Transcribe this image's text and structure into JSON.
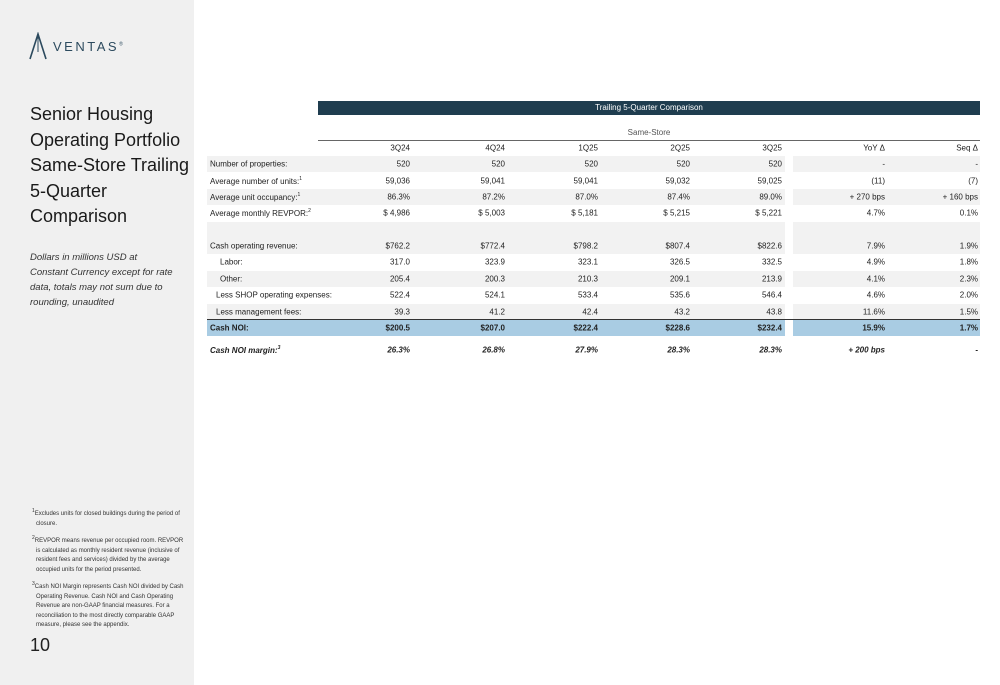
{
  "logo": {
    "text": "VENTAS",
    "mark": "®"
  },
  "title_lines": [
    "Senior Housing",
    "Operating Portfolio",
    "Same-Store Trailing",
    "5-Quarter",
    "Comparison"
  ],
  "subtitle": "Dollars in millions USD at Constant Currency except for rate data, totals may not sum due to rounding, unaudited",
  "footnotes": [
    {
      "number": "1",
      "text": "Excludes units for closed buildings during the period of closure."
    },
    {
      "number": "2",
      "text": "REVPOR means revenue per occupied room. REVPOR is calculated as monthly resident revenue (inclusive of resident fees and services) divided by the average occupied units for the period presented."
    },
    {
      "number": "3",
      "text": "Cash NOI Margin represents Cash NOI divided by Cash Operating Revenue. Cash NOI and Cash Operating Revenue are non-GAAP financial measures. For a reconciliation to the most directly comparable GAAP measure, please see the appendix."
    }
  ],
  "page_number": "10",
  "table": {
    "banner": "Trailing 5-Quarter Comparison",
    "group_header": "Same-Store",
    "columns": [
      "3Q24",
      "4Q24",
      "1Q25",
      "2Q25",
      "3Q25",
      "YoY Δ",
      "Seq Δ"
    ],
    "rows": [
      {
        "label": "Number of properties:",
        "cells": [
          "520",
          "520",
          "520",
          "520",
          "520",
          "-",
          "-"
        ]
      },
      {
        "label": "Average number of units:",
        "note": "1",
        "cells": [
          "59,036",
          "59,041",
          "59,041",
          "59,032",
          "59,025",
          "(11)",
          "(7)"
        ]
      },
      {
        "label": "Average unit occupancy:",
        "note": "1",
        "cells": [
          "86.3%",
          "87.2%",
          "87.0%",
          "87.4%",
          "89.0%",
          "+ 270 bps",
          "+ 160 bps"
        ]
      },
      {
        "label": "Average monthly REVPOR:",
        "note": "2",
        "cells": [
          "$ 4,986",
          "$ 5,003",
          "$ 5,181",
          "$ 5,215",
          "$ 5,221",
          "4.7%",
          "0.1%"
        ]
      },
      {
        "label": "Cash operating revenue:",
        "cells": [
          "$762.2",
          "$772.4",
          "$798.2",
          "$807.4",
          "$822.6",
          "7.9%",
          "1.9%"
        ]
      },
      {
        "label": "Labor:",
        "cells": [
          "317.0",
          "323.9",
          "323.1",
          "326.5",
          "332.5",
          "4.9%",
          "1.8%"
        ]
      },
      {
        "label": "Other:",
        "cells": [
          "205.4",
          "200.3",
          "210.3",
          "209.1",
          "213.9",
          "4.1%",
          "2.3%"
        ]
      },
      {
        "label": "Less SHOP operating expenses:",
        "cells": [
          "522.4",
          "524.1",
          "533.4",
          "535.6",
          "546.4",
          "4.6%",
          "2.0%"
        ]
      },
      {
        "label": "Less management fees:",
        "cells": [
          "39.3",
          "41.2",
          "42.4",
          "43.2",
          "43.8",
          "11.6%",
          "1.5%"
        ]
      },
      {
        "label": "Cash NOI:",
        "cells": [
          "$200.5",
          "$207.0",
          "$222.4",
          "$228.6",
          "$232.4",
          "15.9%",
          "1.7%"
        ]
      },
      {
        "label": "Cash NOI margin:",
        "note": "3",
        "cells": [
          "26.3%",
          "26.8%",
          "27.9%",
          "28.3%",
          "28.3%",
          "+ 200 bps",
          "-"
        ]
      }
    ]
  }
}
